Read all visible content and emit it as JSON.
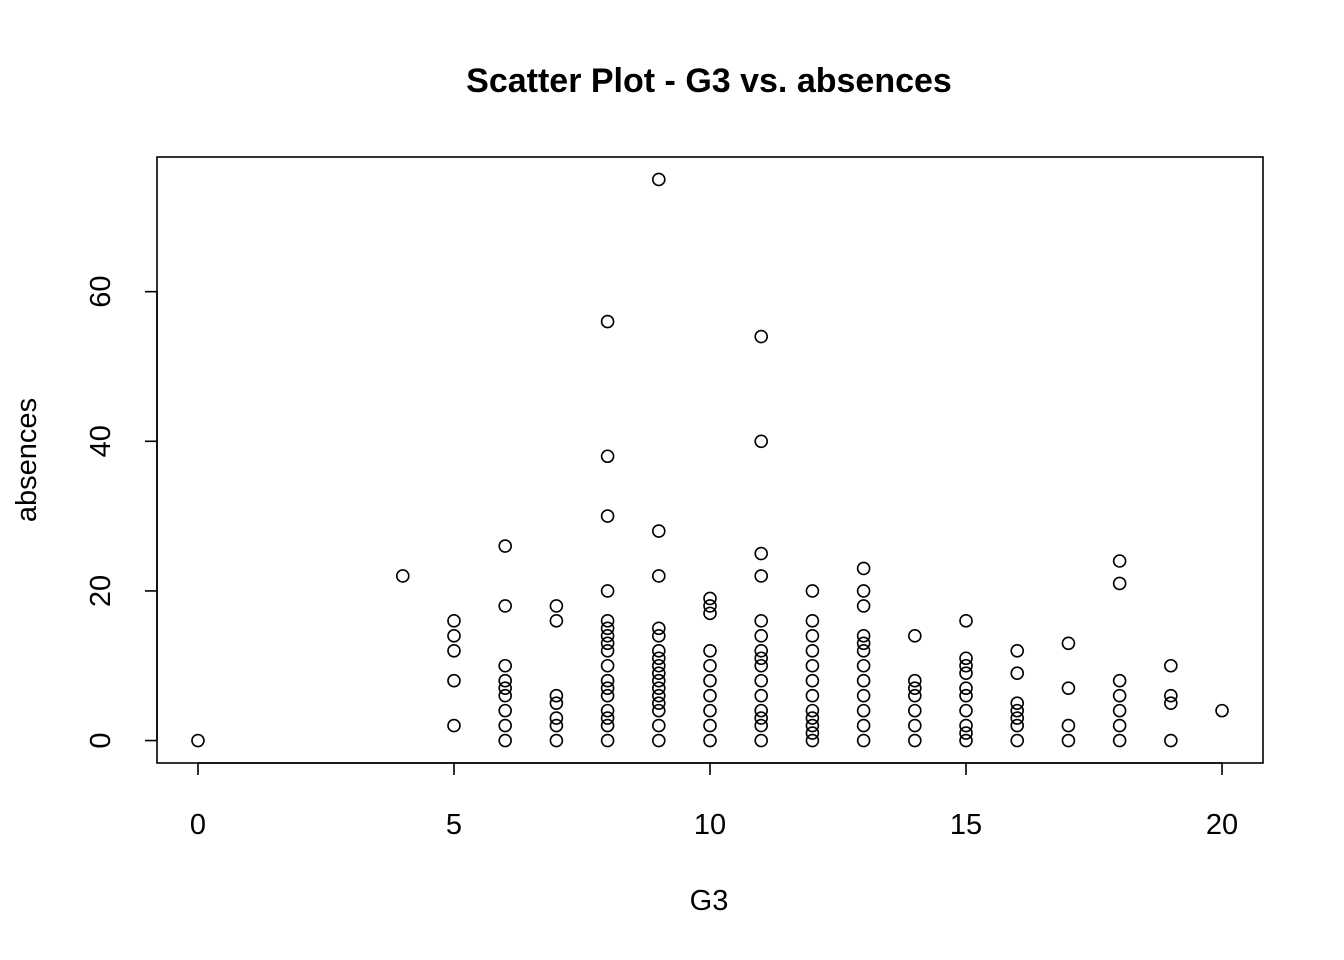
{
  "chart_data": {
    "type": "scatter",
    "title": "Scatter Plot - G3 vs. absences",
    "xlabel": "G3",
    "ylabel": "absences",
    "xlim": [
      -0.8,
      20.8
    ],
    "ylim": [
      -3,
      78
    ],
    "x_ticks": [
      0,
      5,
      10,
      15,
      20
    ],
    "y_ticks": [
      0,
      20,
      40,
      60
    ],
    "grid": false,
    "marker": "open-circle",
    "color": "#000000",
    "points": [
      [
        0,
        0
      ],
      [
        4,
        22
      ],
      [
        5,
        16
      ],
      [
        5,
        14
      ],
      [
        5,
        12
      ],
      [
        5,
        8
      ],
      [
        5,
        2
      ],
      [
        6,
        26
      ],
      [
        6,
        18
      ],
      [
        6,
        10
      ],
      [
        6,
        8
      ],
      [
        6,
        7
      ],
      [
        6,
        6
      ],
      [
        6,
        4
      ],
      [
        6,
        2
      ],
      [
        6,
        0
      ],
      [
        7,
        18
      ],
      [
        7,
        16
      ],
      [
        7,
        6
      ],
      [
        7,
        5
      ],
      [
        7,
        3
      ],
      [
        7,
        2
      ],
      [
        7,
        0
      ],
      [
        8,
        56
      ],
      [
        8,
        38
      ],
      [
        8,
        30
      ],
      [
        8,
        20
      ],
      [
        8,
        16
      ],
      [
        8,
        15
      ],
      [
        8,
        14
      ],
      [
        8,
        13
      ],
      [
        8,
        12
      ],
      [
        8,
        10
      ],
      [
        8,
        8
      ],
      [
        8,
        7
      ],
      [
        8,
        6
      ],
      [
        8,
        4
      ],
      [
        8,
        3
      ],
      [
        8,
        2
      ],
      [
        8,
        0
      ],
      [
        9,
        75
      ],
      [
        9,
        28
      ],
      [
        9,
        22
      ],
      [
        9,
        15
      ],
      [
        9,
        14
      ],
      [
        9,
        12
      ],
      [
        9,
        11
      ],
      [
        9,
        10
      ],
      [
        9,
        9
      ],
      [
        9,
        8
      ],
      [
        9,
        7
      ],
      [
        9,
        6
      ],
      [
        9,
        5
      ],
      [
        9,
        4
      ],
      [
        9,
        2
      ],
      [
        9,
        0
      ],
      [
        10,
        19
      ],
      [
        10,
        18
      ],
      [
        10,
        17
      ],
      [
        10,
        12
      ],
      [
        10,
        10
      ],
      [
        10,
        8
      ],
      [
        10,
        6
      ],
      [
        10,
        4
      ],
      [
        10,
        2
      ],
      [
        10,
        0
      ],
      [
        11,
        54
      ],
      [
        11,
        40
      ],
      [
        11,
        25
      ],
      [
        11,
        22
      ],
      [
        11,
        16
      ],
      [
        11,
        14
      ],
      [
        11,
        12
      ],
      [
        11,
        11
      ],
      [
        11,
        10
      ],
      [
        11,
        8
      ],
      [
        11,
        6
      ],
      [
        11,
        4
      ],
      [
        11,
        3
      ],
      [
        11,
        2
      ],
      [
        11,
        0
      ],
      [
        12,
        20
      ],
      [
        12,
        16
      ],
      [
        12,
        14
      ],
      [
        12,
        12
      ],
      [
        12,
        10
      ],
      [
        12,
        8
      ],
      [
        12,
        6
      ],
      [
        12,
        4
      ],
      [
        12,
        3
      ],
      [
        12,
        2
      ],
      [
        12,
        1
      ],
      [
        12,
        0
      ],
      [
        13,
        23
      ],
      [
        13,
        20
      ],
      [
        13,
        18
      ],
      [
        13,
        14
      ],
      [
        13,
        13
      ],
      [
        13,
        12
      ],
      [
        13,
        10
      ],
      [
        13,
        8
      ],
      [
        13,
        6
      ],
      [
        13,
        4
      ],
      [
        13,
        2
      ],
      [
        13,
        0
      ],
      [
        14,
        14
      ],
      [
        14,
        8
      ],
      [
        14,
        7
      ],
      [
        14,
        6
      ],
      [
        14,
        4
      ],
      [
        14,
        2
      ],
      [
        14,
        0
      ],
      [
        15,
        16
      ],
      [
        15,
        11
      ],
      [
        15,
        10
      ],
      [
        15,
        9
      ],
      [
        15,
        7
      ],
      [
        15,
        6
      ],
      [
        15,
        4
      ],
      [
        15,
        2
      ],
      [
        15,
        1
      ],
      [
        15,
        0
      ],
      [
        16,
        12
      ],
      [
        16,
        9
      ],
      [
        16,
        5
      ],
      [
        16,
        4
      ],
      [
        16,
        3
      ],
      [
        16,
        2
      ],
      [
        16,
        0
      ],
      [
        17,
        13
      ],
      [
        17,
        7
      ],
      [
        17,
        2
      ],
      [
        17,
        0
      ],
      [
        18,
        24
      ],
      [
        18,
        21
      ],
      [
        18,
        8
      ],
      [
        18,
        6
      ],
      [
        18,
        4
      ],
      [
        18,
        2
      ],
      [
        18,
        0
      ],
      [
        19,
        10
      ],
      [
        19,
        6
      ],
      [
        19,
        5
      ],
      [
        19,
        0
      ],
      [
        20,
        4
      ]
    ]
  }
}
